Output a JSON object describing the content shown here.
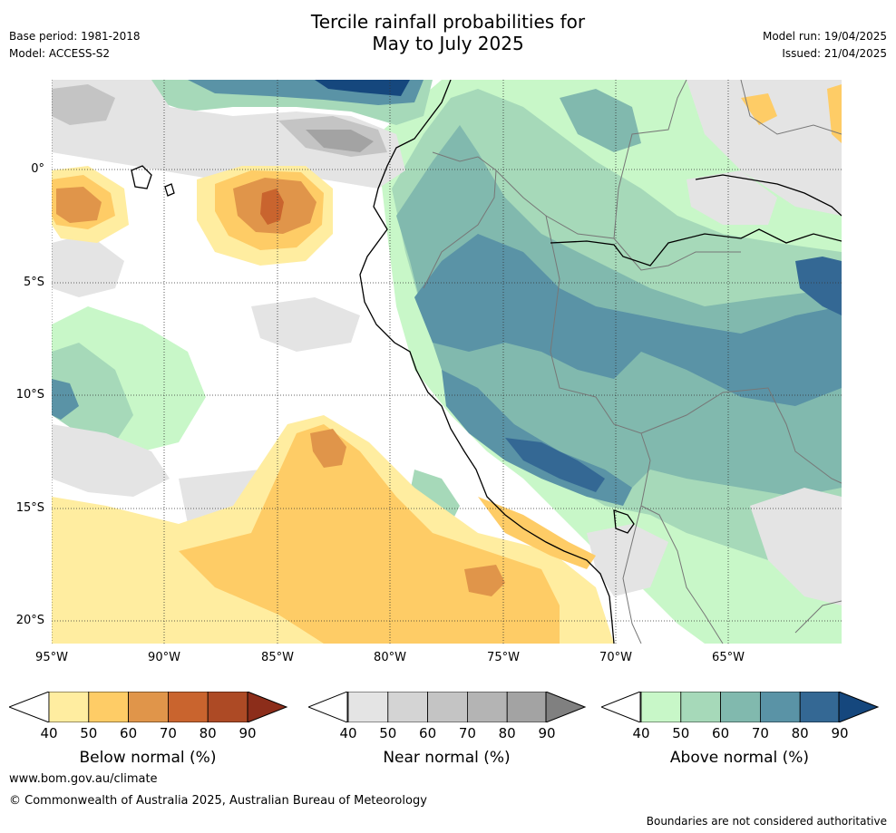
{
  "title_line1": "Tercile rainfall probabilities for",
  "title_line2": "May to July 2025",
  "base_period": "Base period: 1981-2018",
  "model": "Model: ACCESS-S2",
  "model_run": "Model run: 19/04/2025",
  "issued": "Issued: 21/04/2025",
  "map": {
    "latitude_labels": [
      "0°",
      "5°S",
      "10°S",
      "15°S",
      "20°S"
    ],
    "longitude_labels": [
      "95°W",
      "90°W",
      "85°W",
      "80°W",
      "75°W",
      "70°W",
      "65°W"
    ]
  },
  "colorbars": [
    {
      "label": "Below normal (%)",
      "ticks": [
        "40",
        "50",
        "60",
        "70",
        "80",
        "90"
      ],
      "colors": [
        "#ffeda0",
        "#fecc66",
        "#e0954a",
        "#c9642e",
        "#ad4a25",
        "#8c2d1a"
      ]
    },
    {
      "label": "Near normal (%)",
      "ticks": [
        "40",
        "50",
        "60",
        "70",
        "80",
        "90"
      ],
      "colors": [
        "#e4e4e4",
        "#d4d4d4",
        "#c4c4c4",
        "#b4b4b4",
        "#a3a3a3",
        "#808080"
      ]
    },
    {
      "label": "Above normal (%)",
      "ticks": [
        "40",
        "50",
        "60",
        "70",
        "80",
        "90"
      ],
      "colors": [
        "#c8f7c8",
        "#a6d9b9",
        "#81b9ae",
        "#5a93a6",
        "#346894",
        "#15477d"
      ]
    }
  ],
  "footer": {
    "url": "www.bom.gov.au/climate",
    "copyright": "© Commonwealth of Australia 2025, Australian Bureau of Meteorology",
    "note": "Boundaries are not considered authoritative"
  }
}
